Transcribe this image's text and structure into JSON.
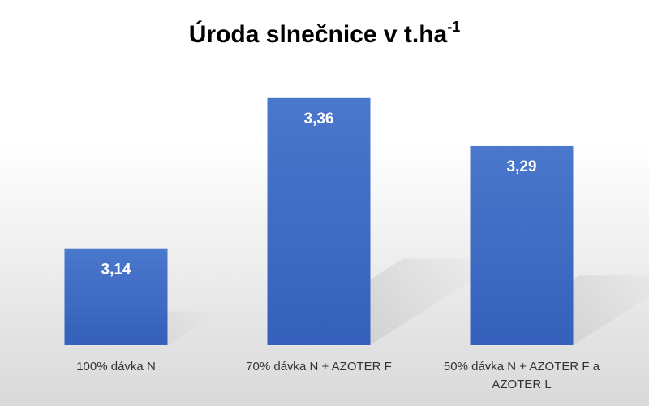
{
  "chart_data": {
    "type": "bar",
    "title": "Úroda slnečnice v t.ha",
    "title_superscript": "-1",
    "categories": [
      "100% dávka N",
      "70% dávka N + AZOTER F",
      "50% dávka N + AZOTER F a AZOTER L"
    ],
    "values": [
      3.14,
      3.36,
      3.29
    ],
    "value_labels": [
      "3,14",
      "3,36",
      "3,29"
    ],
    "color": "#4472c4",
    "ylim": [
      3,
      3.4
    ],
    "grid": false
  }
}
